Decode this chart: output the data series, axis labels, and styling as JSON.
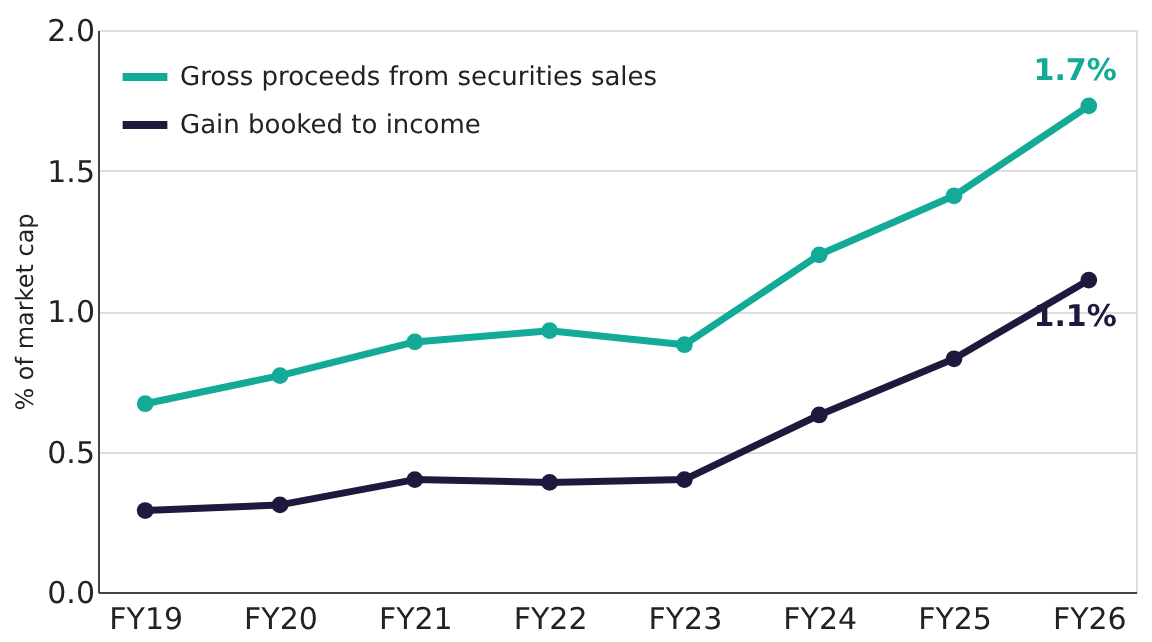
{
  "chart_data": {
    "type": "line",
    "ylabel": "% of market cap",
    "categories": [
      "FY19",
      "FY20",
      "FY21",
      "FY22",
      "FY23",
      "FY24",
      "FY25",
      "FY26"
    ],
    "series": [
      {
        "name": "Gross proceeds from securities sales",
        "color": "#13ab97",
        "values": [
          0.67,
          0.77,
          0.89,
          0.93,
          0.88,
          1.2,
          1.41,
          1.73
        ]
      },
      {
        "name": "Gain booked to income",
        "color": "#1f1a3d",
        "values": [
          0.29,
          0.31,
          0.4,
          0.39,
          0.4,
          0.63,
          0.83,
          1.11
        ]
      }
    ],
    "annotations": [
      {
        "text": "1.7%",
        "x": "FY26",
        "y": 1.73
      },
      {
        "text": "1.1%",
        "x": "FY26",
        "y": 1.11
      }
    ],
    "ylim": [
      0,
      2.0
    ],
    "yticks": [
      {
        "value": 0,
        "label": "0.0"
      },
      {
        "value": 0.5,
        "label": "0.5"
      },
      {
        "value": 1.0,
        "label": "1.0"
      },
      {
        "value": 1.5,
        "label": "1.5"
      },
      {
        "value": 2.0,
        "label": "2.0"
      }
    ],
    "grid": "y",
    "legend": "top left",
    "marker": "circle",
    "line_style": "solid"
  }
}
